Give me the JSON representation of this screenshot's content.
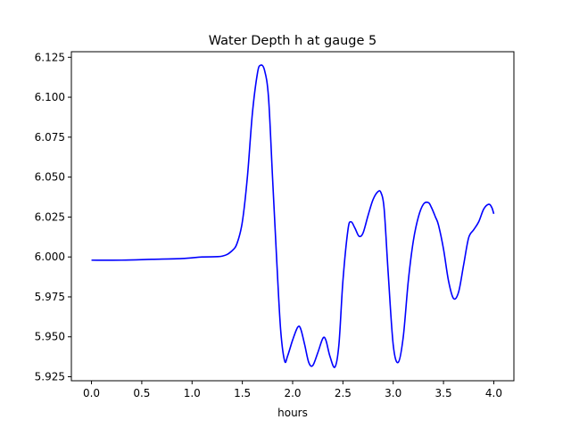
{
  "chart_data": {
    "type": "line",
    "title": "Water Depth h at gauge 5",
    "xlabel": "hours",
    "ylabel": "",
    "xlim": [
      -0.2,
      4.2
    ],
    "ylim": [
      5.9225,
      6.1285
    ],
    "xticks": [
      0.0,
      0.5,
      1.0,
      1.5,
      2.0,
      2.5,
      3.0,
      3.5,
      4.0
    ],
    "xtick_labels": [
      "0.0",
      "0.5",
      "1.0",
      "1.5",
      "2.0",
      "2.5",
      "3.0",
      "3.5",
      "4.0"
    ],
    "yticks": [
      5.925,
      5.95,
      5.975,
      6.0,
      6.025,
      6.05,
      6.075,
      6.1,
      6.125
    ],
    "ytick_labels": [
      "5.925",
      "5.950",
      "5.975",
      "6.000",
      "6.025",
      "6.050",
      "6.075",
      "6.100",
      "6.125"
    ],
    "grid": false,
    "series": [
      {
        "color": "#0000ff",
        "x": [
          0.0,
          0.3,
          0.6,
          0.9,
          1.1,
          1.3,
          1.4,
          1.45,
          1.5,
          1.55,
          1.6,
          1.65,
          1.68,
          1.72,
          1.76,
          1.8,
          1.84,
          1.88,
          1.92,
          1.95,
          2.0,
          2.05,
          2.08,
          2.12,
          2.16,
          2.2,
          2.25,
          2.3,
          2.33,
          2.37,
          2.42,
          2.46,
          2.5,
          2.55,
          2.58,
          2.62,
          2.66,
          2.7,
          2.75,
          2.8,
          2.85,
          2.88,
          2.91,
          2.95,
          3.0,
          3.05,
          3.1,
          3.15,
          3.2,
          3.25,
          3.3,
          3.35,
          3.38,
          3.42,
          3.45,
          3.5,
          3.55,
          3.6,
          3.65,
          3.7,
          3.75,
          3.8,
          3.85,
          3.9,
          3.95,
          3.98,
          4.0
        ],
        "y": [
          5.998,
          5.998,
          5.9985,
          5.999,
          6.0,
          6.0005,
          6.004,
          6.009,
          6.022,
          6.05,
          6.09,
          6.115,
          6.12,
          6.117,
          6.1,
          6.05,
          6.0,
          5.955,
          5.935,
          5.938,
          5.948,
          5.956,
          5.955,
          5.945,
          5.934,
          5.932,
          5.94,
          5.949,
          5.948,
          5.938,
          5.931,
          5.945,
          5.985,
          6.017,
          6.022,
          6.018,
          6.013,
          6.015,
          6.026,
          6.036,
          6.041,
          6.04,
          6.03,
          5.99,
          5.945,
          5.934,
          5.95,
          5.985,
          6.01,
          6.025,
          6.033,
          6.034,
          6.031,
          6.025,
          6.02,
          6.005,
          5.985,
          5.974,
          5.978,
          5.995,
          6.012,
          6.017,
          6.022,
          6.03,
          6.033,
          6.031,
          6.027
        ]
      }
    ]
  }
}
